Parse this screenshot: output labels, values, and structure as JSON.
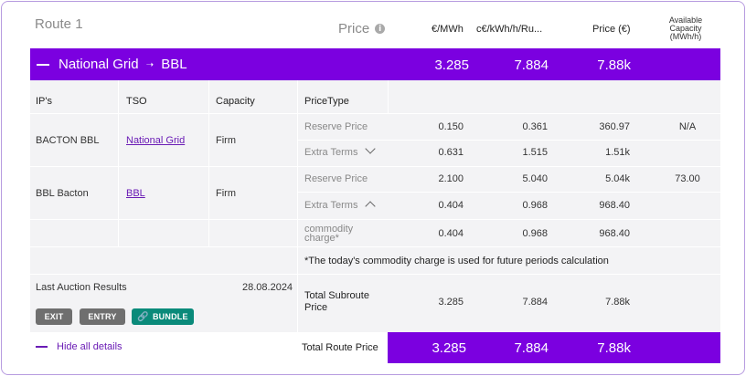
{
  "route": {
    "title": "Route 1"
  },
  "header": {
    "price_label": "Price",
    "col_eur_mwh": "€/MWh",
    "col_ceur": "c€/kWh/h/Ru...",
    "col_price_eur": "Price (€)",
    "col_available": "Available Capacity (MWh/h)"
  },
  "summary": {
    "name": "National Grid",
    "destination": "BBL",
    "arrow": "➝",
    "eur_mwh": "3.285",
    "ceur": "7.884",
    "price_eur": "7.88k"
  },
  "detail": {
    "headers": {
      "ips": "IP's",
      "tso": "TSO",
      "capacity": "Capacity",
      "price_type": "PriceType"
    },
    "rows": [
      {
        "ip": "BACTON BBL",
        "tso": "National Grid",
        "capacity": "Firm",
        "lines": [
          {
            "type": "Reserve Price",
            "eur_mwh": "0.150",
            "ceur": "0.361",
            "price": "360.97",
            "available": "N/A"
          },
          {
            "type": "Extra Terms",
            "eur_mwh": "0.631",
            "ceur": "1.515",
            "price": "1.51k",
            "available": ""
          }
        ]
      },
      {
        "ip": "BBL Bacton",
        "tso": "BBL",
        "capacity": "Firm",
        "lines": [
          {
            "type": "Reserve Price",
            "eur_mwh": "2.100",
            "ceur": "5.040",
            "price": "5.04k",
            "available": "73.00"
          },
          {
            "type": "Extra Terms",
            "eur_mwh": "0.404",
            "ceur": "0.968",
            "price": "968.40",
            "available": ""
          }
        ]
      }
    ],
    "commodity": {
      "label": "commodity charge*",
      "eur_mwh": "0.404",
      "ceur": "0.968",
      "price": "968.40"
    },
    "note": "*The today's commodity charge is used for future periods calculation",
    "auction": {
      "label": "Last Auction Results",
      "date": "28.08.2024"
    },
    "buttons": {
      "exit": "EXIT",
      "entry": "ENTRY",
      "bundle": "BUNDLE"
    },
    "subtotal": {
      "label": "Total Subroute Price",
      "eur_mwh": "3.285",
      "ceur": "7.884",
      "price": "7.88k"
    }
  },
  "footer": {
    "hide_details": "Hide all details",
    "total_label": "Total Route Price",
    "eur_mwh": "3.285",
    "ceur": "7.884",
    "price": "7.88k"
  },
  "colors": {
    "accent": "#7b00e0",
    "teal": "#0a8a7a",
    "link": "#6a1bb5"
  },
  "icons": {
    "info": "info-icon",
    "collapse": "minus-icon",
    "expand_down": "chevron-down-icon",
    "expand_up": "chevron-up-icon",
    "link": "link-icon"
  }
}
